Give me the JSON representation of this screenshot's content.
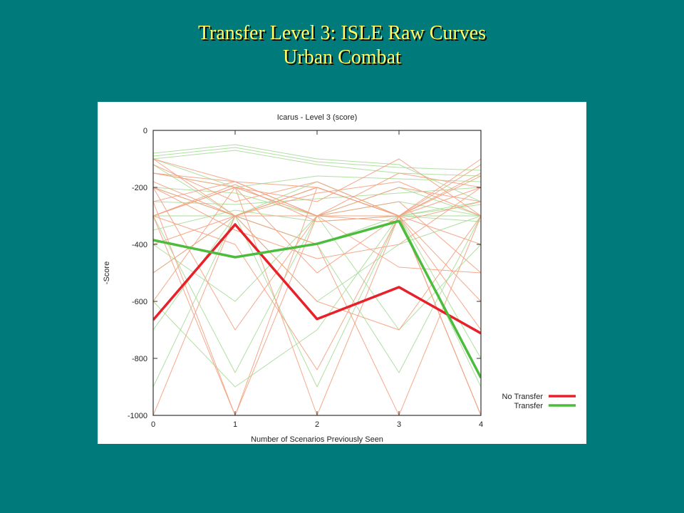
{
  "slide": {
    "title_line1": "Transfer Level 3: ISLE Raw Curves",
    "title_line2": "Urban Combat"
  },
  "colors": {
    "background": "#007a7a",
    "title": "#ffff66",
    "no_transfer": "#e8202a",
    "transfer": "#4cbc3c",
    "no_transfer_light": "#f4a080",
    "transfer_light": "#a8dc98"
  },
  "chart_data": {
    "type": "line",
    "title": "Icarus - Level 3 (score)",
    "xlabel": "Number of Scenarios Previously Seen",
    "ylabel": "-Score",
    "x": [
      0,
      1,
      2,
      3,
      4
    ],
    "xlim": [
      0,
      4
    ],
    "ylim": [
      -1000,
      0
    ],
    "xticks": [
      "0",
      "1",
      "2",
      "3",
      "4"
    ],
    "yticks": [
      "0",
      "-200",
      "-400",
      "-600",
      "-800",
      "-1000"
    ],
    "grid": false,
    "legend_position": "right",
    "series": [
      {
        "name": "No Transfer",
        "values": [
          -665,
          -330,
          -662,
          -550,
          -712
        ]
      },
      {
        "name": "Transfer",
        "values": [
          -385,
          -445,
          -398,
          -318,
          -868
        ]
      }
    ],
    "raw_curves": {
      "no_transfer": [
        [
          -100,
          -180,
          -200,
          -300,
          -120
        ],
        [
          -150,
          -200,
          -250,
          -100,
          -300
        ],
        [
          -200,
          -300,
          -200,
          -300,
          -100
        ],
        [
          -250,
          -180,
          -300,
          -200,
          -250
        ],
        [
          -300,
          -200,
          -300,
          -150,
          -200
        ],
        [
          -120,
          -250,
          -180,
          -300,
          -150
        ],
        [
          -180,
          -300,
          -220,
          -180,
          -300
        ],
        [
          -300,
          -190,
          -320,
          -300,
          -160
        ],
        [
          -100,
          -300,
          -200,
          -300,
          -400
        ],
        [
          -300,
          -1000,
          -200,
          -300,
          -1000
        ],
        [
          -600,
          -200,
          -500,
          -300,
          -1000
        ],
        [
          -1000,
          -300,
          -400,
          -1000,
          -300
        ],
        [
          -200,
          -700,
          -300,
          -250,
          -500
        ],
        [
          -300,
          -400,
          -840,
          -300,
          -200
        ],
        [
          -400,
          -300,
          -600,
          -700,
          -300
        ],
        [
          -250,
          -1000,
          -300,
          -480,
          -500
        ],
        [
          -500,
          -300,
          -300,
          -300,
          -600
        ],
        [
          -300,
          -200,
          -1000,
          -300,
          -700
        ],
        [
          -200,
          -350,
          -450,
          -400,
          -200
        ],
        [
          -150,
          -180,
          -300,
          -320,
          -250
        ]
      ],
      "transfer": [
        [
          -80,
          -50,
          -100,
          -120,
          -250
        ],
        [
          -90,
          -60,
          -110,
          -130,
          -140
        ],
        [
          -100,
          -70,
          -120,
          -150,
          -160
        ],
        [
          -150,
          -200,
          -160,
          -170,
          -180
        ],
        [
          -200,
          -220,
          -300,
          -200,
          -300
        ],
        [
          -300,
          -300,
          -200,
          -300,
          -260
        ],
        [
          -250,
          -260,
          -240,
          -220,
          -200
        ],
        [
          -100,
          -200,
          -300,
          -250,
          -300
        ],
        [
          -300,
          -850,
          -300,
          -300,
          -300
        ],
        [
          -600,
          -900,
          -700,
          -300,
          -300
        ],
        [
          -900,
          -300,
          -400,
          -850,
          -300
        ],
        [
          -500,
          -300,
          -300,
          -300,
          -900
        ],
        [
          -700,
          -300,
          -400,
          -300,
          -800
        ],
        [
          -200,
          -300,
          -600,
          -400,
          -300
        ],
        [
          -400,
          -600,
          -300,
          -700,
          -400
        ],
        [
          -300,
          -300,
          -900,
          -300,
          -1000
        ],
        [
          -350,
          -280,
          -320,
          -300,
          -320
        ],
        [
          -120,
          -300,
          -180,
          -300,
          -250
        ]
      ]
    }
  }
}
